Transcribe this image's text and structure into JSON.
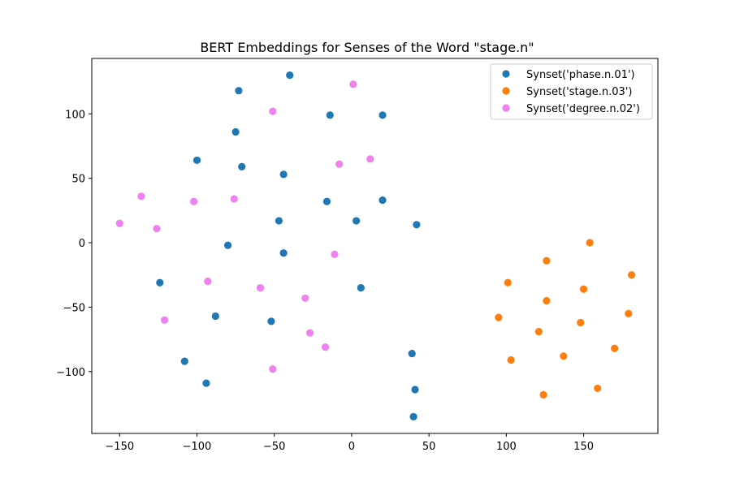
{
  "chart_data": {
    "type": "scatter",
    "title": "BERT Embeddings for Senses of the Word \"stage.n\"",
    "xlabel": "",
    "ylabel": "",
    "xlim": [
      -168,
      198
    ],
    "ylim": [
      -148,
      143
    ],
    "xticks": [
      -150,
      -100,
      -50,
      0,
      50,
      100,
      150
    ],
    "yticks": [
      -100,
      -50,
      0,
      50,
      100
    ],
    "grid": false,
    "legend_position": "top-right",
    "series": [
      {
        "name": "Synset('phase.n.01')",
        "color": "#1f77b4",
        "points": [
          [
            -40,
            130
          ],
          [
            -73,
            118
          ],
          [
            -14,
            99
          ],
          [
            20,
            99
          ],
          [
            -75,
            86
          ],
          [
            -100,
            64
          ],
          [
            -71,
            59
          ],
          [
            -44,
            53
          ],
          [
            -16,
            32
          ],
          [
            20,
            33
          ],
          [
            -47,
            17
          ],
          [
            3,
            17
          ],
          [
            42,
            14
          ],
          [
            -80,
            -2
          ],
          [
            -44,
            -8
          ],
          [
            -124,
            -31
          ],
          [
            6,
            -35
          ],
          [
            -88,
            -57
          ],
          [
            -52,
            -61
          ],
          [
            39,
            -86
          ],
          [
            -108,
            -92
          ],
          [
            -94,
            -109
          ],
          [
            41,
            -114
          ],
          [
            40,
            -135
          ]
        ]
      },
      {
        "name": "Synset('stage.n.03')",
        "color": "#ff7f0e",
        "points": [
          [
            154,
            0
          ],
          [
            126,
            -14
          ],
          [
            181,
            -25
          ],
          [
            101,
            -31
          ],
          [
            150,
            -36
          ],
          [
            126,
            -45
          ],
          [
            179,
            -55
          ],
          [
            95,
            -58
          ],
          [
            148,
            -62
          ],
          [
            121,
            -69
          ],
          [
            170,
            -82
          ],
          [
            137,
            -88
          ],
          [
            103,
            -91
          ],
          [
            159,
            -113
          ],
          [
            124,
            -118
          ]
        ]
      },
      {
        "name": "Synset('degree.n.02')",
        "color": "#ee82ee",
        "points": [
          [
            1,
            123
          ],
          [
            -51,
            102
          ],
          [
            12,
            65
          ],
          [
            -8,
            61
          ],
          [
            -136,
            36
          ],
          [
            -102,
            32
          ],
          [
            -76,
            34
          ],
          [
            -150,
            15
          ],
          [
            -126,
            11
          ],
          [
            -11,
            -9
          ],
          [
            -93,
            -30
          ],
          [
            -59,
            -35
          ],
          [
            -30,
            -43
          ],
          [
            -121,
            -60
          ],
          [
            -27,
            -70
          ],
          [
            -17,
            -81
          ],
          [
            -51,
            -98
          ]
        ]
      }
    ]
  }
}
